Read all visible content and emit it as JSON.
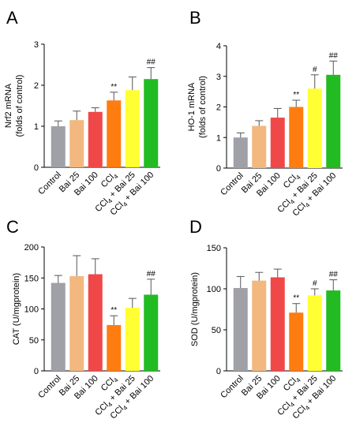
{
  "chart_data": [
    {
      "panel": "A",
      "type": "bar",
      "ylabel": "Nrf2 mRNA",
      "ylabel2": "(folds of control)",
      "ylim": [
        0,
        3
      ],
      "yticks": [
        0,
        1,
        2,
        3
      ],
      "categories": [
        "Control",
        "Bai 25",
        "Bai 100",
        "CCl4",
        "CCl4 + Bai 25",
        "CCl4 + Bai 100"
      ],
      "values": [
        1.0,
        1.15,
        1.35,
        1.63,
        1.88,
        2.15
      ],
      "errors": [
        0.13,
        0.22,
        0.1,
        0.2,
        0.32,
        0.28
      ],
      "annotations": [
        "",
        "",
        "",
        "**",
        "",
        "##"
      ]
    },
    {
      "panel": "B",
      "type": "bar",
      "ylabel": "HO-1 mRNA",
      "ylabel2": "(folds of control)",
      "ylim": [
        0,
        4
      ],
      "yticks": [
        0,
        1,
        2,
        3,
        4
      ],
      "categories": [
        "Control",
        "Bai 25",
        "Bai 100",
        "CCl4",
        "CCl4 + Bai 25",
        "CCl4 + Bai 100"
      ],
      "values": [
        1.0,
        1.38,
        1.65,
        2.0,
        2.6,
        3.05
      ],
      "errors": [
        0.15,
        0.17,
        0.3,
        0.22,
        0.45,
        0.45
      ],
      "annotations": [
        "",
        "",
        "",
        "**",
        "#",
        "##"
      ]
    },
    {
      "panel": "C",
      "type": "bar",
      "ylabel": "CAT (U/mgprotein)",
      "ylabel2": "",
      "ylim": [
        0,
        200
      ],
      "yticks": [
        0,
        50,
        100,
        150,
        200
      ],
      "categories": [
        "Control",
        "Bai 25",
        "Bai 100",
        "CCl4",
        "CCl4 + Bai 25",
        "CCl4 + Bai 100"
      ],
      "values": [
        142,
        153,
        156,
        74,
        102,
        123
      ],
      "errors": [
        12,
        33,
        25,
        15,
        15,
        25
      ],
      "annotations": [
        "",
        "",
        "",
        "**",
        "",
        "##"
      ]
    },
    {
      "panel": "D",
      "type": "bar",
      "ylabel": "SOD (U/mgprotein)",
      "ylabel2": "",
      "ylim": [
        0,
        150
      ],
      "yticks": [
        0,
        50,
        100,
        150
      ],
      "categories": [
        "Control",
        "Bai 25",
        "Bai 100",
        "CCl4",
        "CCl4 + Bai 25",
        "CCl4 + Bai 100"
      ],
      "values": [
        101,
        110,
        114,
        71,
        92,
        98
      ],
      "errors": [
        14,
        10,
        10,
        11,
        8,
        13
      ],
      "annotations": [
        "",
        "",
        "",
        "**",
        "#",
        "##"
      ]
    }
  ],
  "colors": [
    "#a0a0a7",
    "#f2b880",
    "#f04848",
    "#ff7c10",
    "#ffff33",
    "#22bb22"
  ]
}
